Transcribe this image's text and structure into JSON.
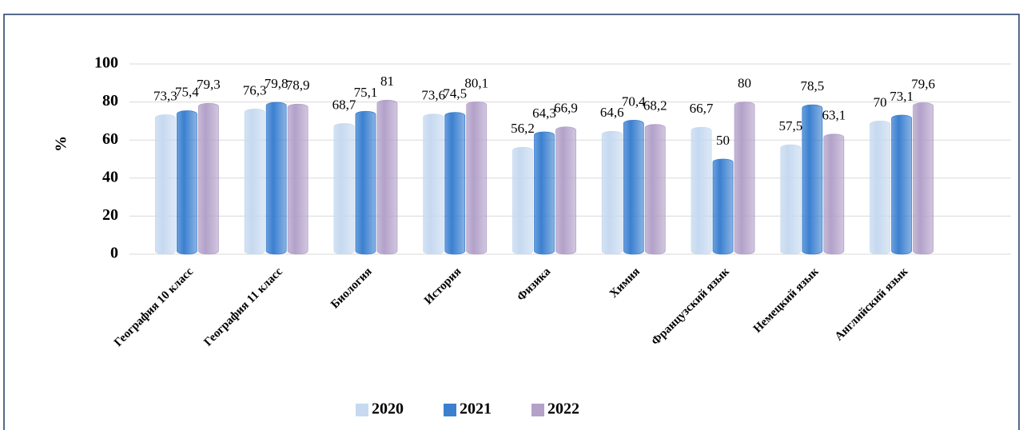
{
  "chart_data": {
    "type": "bar",
    "ylabel": "%",
    "categories": [
      "География 10 класс",
      "География 11 класс",
      "Биология",
      "История",
      "Физика",
      "Химия",
      "Французский язык",
      "Немецкий язык",
      "Английский язык"
    ],
    "series": [
      {
        "name": "2020",
        "color": "#c6d9f0",
        "values": [
          73.3,
          76.3,
          68.7,
          73.6,
          56.2,
          64.6,
          66.7,
          57.5,
          70
        ],
        "value_labels": [
          "73,3",
          "76,3",
          "68,7",
          "73,6",
          "56,2",
          "64,6",
          "66,7",
          "57,5",
          "70"
        ]
      },
      {
        "name": "2021",
        "color": "#3b80d0",
        "values": [
          75.4,
          79.8,
          75.1,
          74.5,
          64.3,
          70.4,
          50,
          78.5,
          73.1
        ],
        "value_labels": [
          "75,4",
          "79,8",
          "75,1",
          "74,5",
          "64,3",
          "70,4",
          "50",
          "78,5",
          "73,1"
        ]
      },
      {
        "name": "2022",
        "color": "#b3a1c9",
        "values": [
          79.3,
          78.9,
          81,
          80.1,
          66.9,
          68.2,
          80,
          63.1,
          79.6
        ],
        "value_labels": [
          "79,3",
          "78,9",
          "81",
          "80,1",
          "66,9",
          "68,2",
          "80",
          "63,1",
          "79,6"
        ]
      }
    ],
    "ylim": [
      0,
      100
    ],
    "yticks": [
      0,
      20,
      40,
      60,
      80,
      100
    ],
    "grid": true,
    "legend": "bottom"
  }
}
